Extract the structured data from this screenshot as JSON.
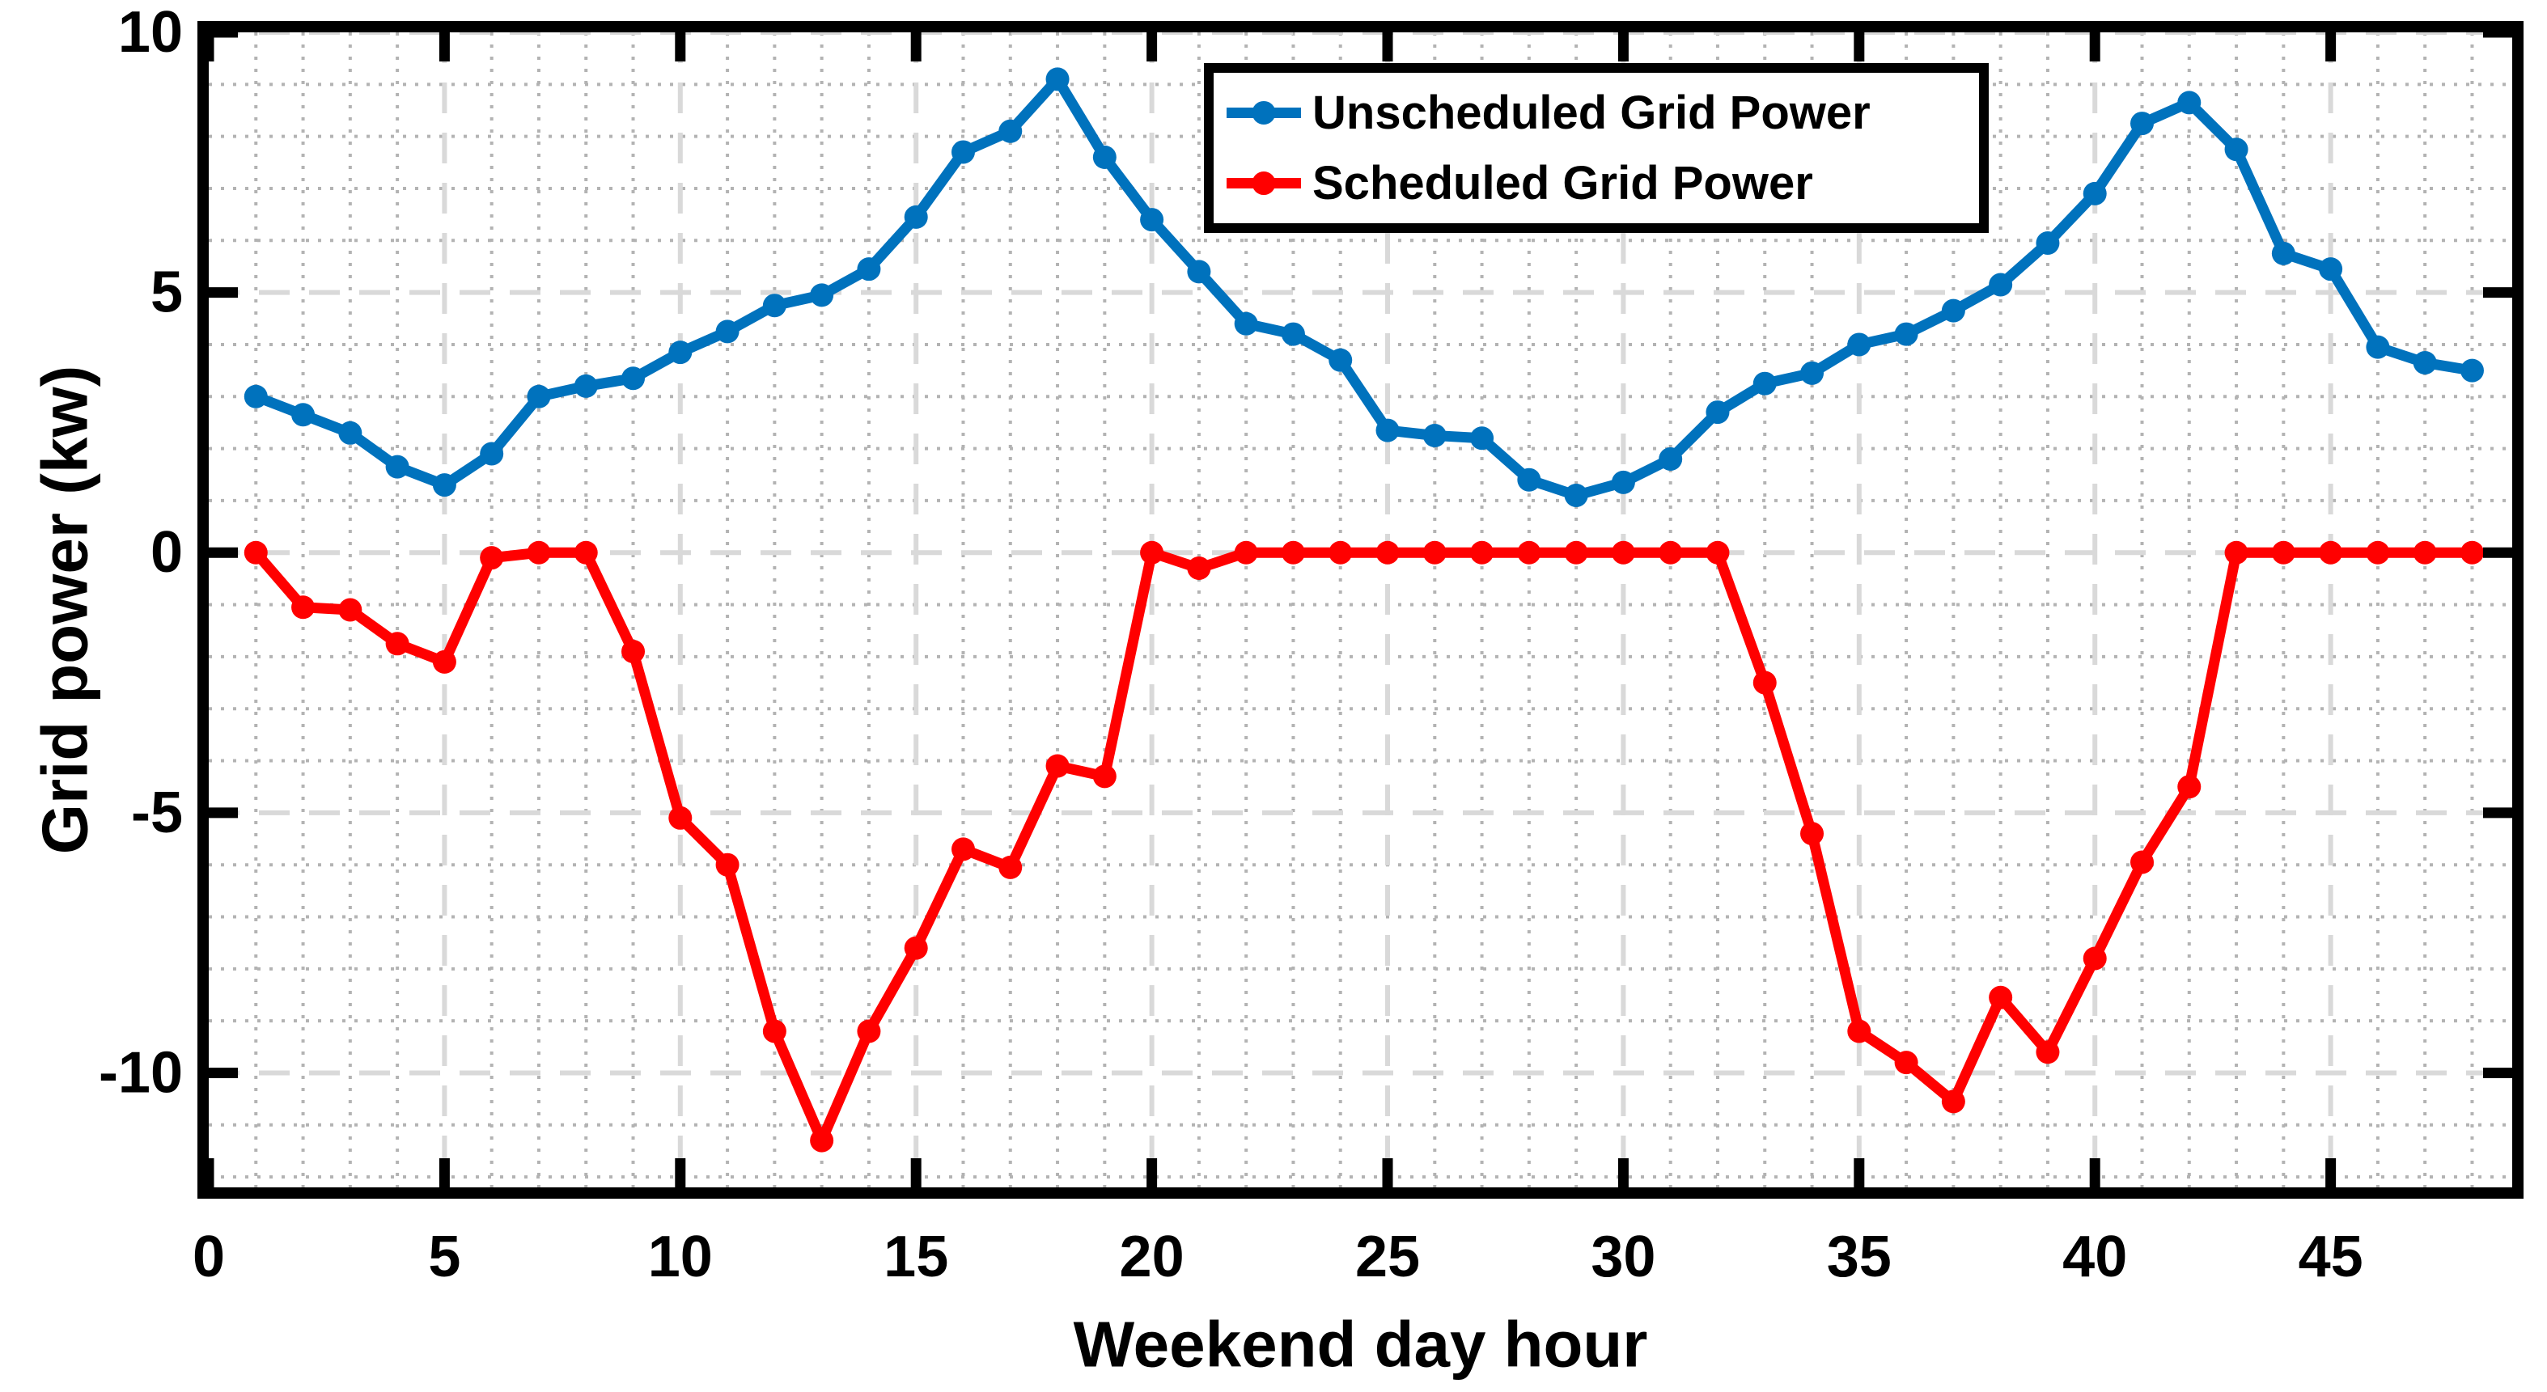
{
  "chart_data": {
    "type": "line",
    "title": "",
    "xlabel": "Weekend day hour",
    "ylabel": "Grid power (kw)",
    "xlim": [
      0,
      48.85
    ],
    "ylim": [
      -12.2,
      10
    ],
    "xticks": [
      0,
      5,
      10,
      15,
      20,
      25,
      30,
      35,
      40,
      45
    ],
    "yticks": [
      10,
      5,
      0,
      -5,
      -10
    ],
    "grid": true,
    "minor_grid": true,
    "legend_position": "top-right-inside",
    "x": [
      1,
      2,
      3,
      4,
      5,
      6,
      7,
      8,
      9,
      10,
      11,
      12,
      13,
      14,
      15,
      16,
      17,
      18,
      19,
      20,
      21,
      22,
      23,
      24,
      25,
      26,
      27,
      28,
      29,
      30,
      31,
      32,
      33,
      34,
      35,
      36,
      37,
      38,
      39,
      40,
      41,
      42,
      43,
      44,
      45,
      46,
      47,
      48
    ],
    "series": [
      {
        "name": "Unscheduled Grid Power",
        "color": "#0072BD",
        "values": [
          3.0,
          2.65,
          2.3,
          1.65,
          1.3,
          1.9,
          3.0,
          3.2,
          3.35,
          3.85,
          4.25,
          4.75,
          4.95,
          5.45,
          6.45,
          7.7,
          8.1,
          9.1,
          7.6,
          6.4,
          5.4,
          4.4,
          4.2,
          3.7,
          2.35,
          2.25,
          2.2,
          1.4,
          1.1,
          1.35,
          1.8,
          2.7,
          3.25,
          3.45,
          4.0,
          4.2,
          4.65,
          5.15,
          5.95,
          6.9,
          8.25,
          8.65,
          7.75,
          5.75,
          5.45,
          3.95,
          3.65,
          3.5
        ]
      },
      {
        "name": "Scheduled Grid Power",
        "color": "#FF0000",
        "values": [
          0,
          -1.05,
          -1.1,
          -1.75,
          -2.1,
          -0.1,
          0,
          0,
          -1.9,
          -5.1,
          -6.0,
          -9.2,
          -11.3,
          -9.2,
          -7.6,
          -5.7,
          -6.05,
          -4.1,
          -4.3,
          0,
          -0.3,
          0,
          0,
          0,
          0,
          0,
          0,
          0,
          0,
          0,
          0,
          0,
          -2.5,
          -5.4,
          -9.2,
          -9.8,
          -10.55,
          -8.55,
          -9.6,
          -7.8,
          -5.95,
          -4.5,
          0,
          0,
          0,
          0,
          0,
          0
        ]
      }
    ],
    "style": {
      "axis_color": "#000000",
      "major_grid_color": "#d9d9d9",
      "minor_grid_color": "#b3b3b3",
      "background": "#ffffff"
    }
  }
}
